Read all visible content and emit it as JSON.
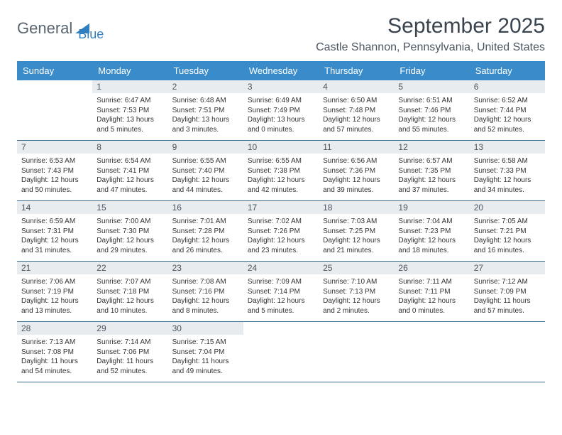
{
  "brand": {
    "part1": "General",
    "part2": "Blue"
  },
  "title": "September 2025",
  "location": "Castle Shannon, Pennsylvania, United States",
  "colors": {
    "header_bg": "#3a8bc9",
    "header_text": "#ffffff",
    "daynum_bg": "#e9ecef",
    "border": "#3a6b8f",
    "brand_gray": "#5a6570",
    "brand_blue": "#2f7fc1",
    "text": "#333333"
  },
  "day_labels": [
    "Sunday",
    "Monday",
    "Tuesday",
    "Wednesday",
    "Thursday",
    "Friday",
    "Saturday"
  ],
  "weeks": [
    [
      null,
      {
        "n": "1",
        "sr": "Sunrise: 6:47 AM",
        "ss": "Sunset: 7:53 PM",
        "dl": "Daylight: 13 hours and 5 minutes."
      },
      {
        "n": "2",
        "sr": "Sunrise: 6:48 AM",
        "ss": "Sunset: 7:51 PM",
        "dl": "Daylight: 13 hours and 3 minutes."
      },
      {
        "n": "3",
        "sr": "Sunrise: 6:49 AM",
        "ss": "Sunset: 7:49 PM",
        "dl": "Daylight: 13 hours and 0 minutes."
      },
      {
        "n": "4",
        "sr": "Sunrise: 6:50 AM",
        "ss": "Sunset: 7:48 PM",
        "dl": "Daylight: 12 hours and 57 minutes."
      },
      {
        "n": "5",
        "sr": "Sunrise: 6:51 AM",
        "ss": "Sunset: 7:46 PM",
        "dl": "Daylight: 12 hours and 55 minutes."
      },
      {
        "n": "6",
        "sr": "Sunrise: 6:52 AM",
        "ss": "Sunset: 7:44 PM",
        "dl": "Daylight: 12 hours and 52 minutes."
      }
    ],
    [
      {
        "n": "7",
        "sr": "Sunrise: 6:53 AM",
        "ss": "Sunset: 7:43 PM",
        "dl": "Daylight: 12 hours and 50 minutes."
      },
      {
        "n": "8",
        "sr": "Sunrise: 6:54 AM",
        "ss": "Sunset: 7:41 PM",
        "dl": "Daylight: 12 hours and 47 minutes."
      },
      {
        "n": "9",
        "sr": "Sunrise: 6:55 AM",
        "ss": "Sunset: 7:40 PM",
        "dl": "Daylight: 12 hours and 44 minutes."
      },
      {
        "n": "10",
        "sr": "Sunrise: 6:55 AM",
        "ss": "Sunset: 7:38 PM",
        "dl": "Daylight: 12 hours and 42 minutes."
      },
      {
        "n": "11",
        "sr": "Sunrise: 6:56 AM",
        "ss": "Sunset: 7:36 PM",
        "dl": "Daylight: 12 hours and 39 minutes."
      },
      {
        "n": "12",
        "sr": "Sunrise: 6:57 AM",
        "ss": "Sunset: 7:35 PM",
        "dl": "Daylight: 12 hours and 37 minutes."
      },
      {
        "n": "13",
        "sr": "Sunrise: 6:58 AM",
        "ss": "Sunset: 7:33 PM",
        "dl": "Daylight: 12 hours and 34 minutes."
      }
    ],
    [
      {
        "n": "14",
        "sr": "Sunrise: 6:59 AM",
        "ss": "Sunset: 7:31 PM",
        "dl": "Daylight: 12 hours and 31 minutes."
      },
      {
        "n": "15",
        "sr": "Sunrise: 7:00 AM",
        "ss": "Sunset: 7:30 PM",
        "dl": "Daylight: 12 hours and 29 minutes."
      },
      {
        "n": "16",
        "sr": "Sunrise: 7:01 AM",
        "ss": "Sunset: 7:28 PM",
        "dl": "Daylight: 12 hours and 26 minutes."
      },
      {
        "n": "17",
        "sr": "Sunrise: 7:02 AM",
        "ss": "Sunset: 7:26 PM",
        "dl": "Daylight: 12 hours and 23 minutes."
      },
      {
        "n": "18",
        "sr": "Sunrise: 7:03 AM",
        "ss": "Sunset: 7:25 PM",
        "dl": "Daylight: 12 hours and 21 minutes."
      },
      {
        "n": "19",
        "sr": "Sunrise: 7:04 AM",
        "ss": "Sunset: 7:23 PM",
        "dl": "Daylight: 12 hours and 18 minutes."
      },
      {
        "n": "20",
        "sr": "Sunrise: 7:05 AM",
        "ss": "Sunset: 7:21 PM",
        "dl": "Daylight: 12 hours and 16 minutes."
      }
    ],
    [
      {
        "n": "21",
        "sr": "Sunrise: 7:06 AM",
        "ss": "Sunset: 7:19 PM",
        "dl": "Daylight: 12 hours and 13 minutes."
      },
      {
        "n": "22",
        "sr": "Sunrise: 7:07 AM",
        "ss": "Sunset: 7:18 PM",
        "dl": "Daylight: 12 hours and 10 minutes."
      },
      {
        "n": "23",
        "sr": "Sunrise: 7:08 AM",
        "ss": "Sunset: 7:16 PM",
        "dl": "Daylight: 12 hours and 8 minutes."
      },
      {
        "n": "24",
        "sr": "Sunrise: 7:09 AM",
        "ss": "Sunset: 7:14 PM",
        "dl": "Daylight: 12 hours and 5 minutes."
      },
      {
        "n": "25",
        "sr": "Sunrise: 7:10 AM",
        "ss": "Sunset: 7:13 PM",
        "dl": "Daylight: 12 hours and 2 minutes."
      },
      {
        "n": "26",
        "sr": "Sunrise: 7:11 AM",
        "ss": "Sunset: 7:11 PM",
        "dl": "Daylight: 12 hours and 0 minutes."
      },
      {
        "n": "27",
        "sr": "Sunrise: 7:12 AM",
        "ss": "Sunset: 7:09 PM",
        "dl": "Daylight: 11 hours and 57 minutes."
      }
    ],
    [
      {
        "n": "28",
        "sr": "Sunrise: 7:13 AM",
        "ss": "Sunset: 7:08 PM",
        "dl": "Daylight: 11 hours and 54 minutes."
      },
      {
        "n": "29",
        "sr": "Sunrise: 7:14 AM",
        "ss": "Sunset: 7:06 PM",
        "dl": "Daylight: 11 hours and 52 minutes."
      },
      {
        "n": "30",
        "sr": "Sunrise: 7:15 AM",
        "ss": "Sunset: 7:04 PM",
        "dl": "Daylight: 11 hours and 49 minutes."
      },
      null,
      null,
      null,
      null
    ]
  ]
}
